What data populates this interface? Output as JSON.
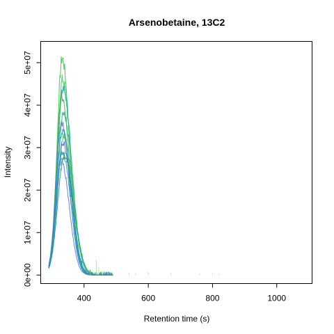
{
  "chart_data": {
    "type": "line",
    "title": "Arsenobetaine, 13C2",
    "xlabel": "Retention time (s)",
    "ylabel": "Intensity",
    "xlim": [
      265,
      1110
    ],
    "ylim": [
      -2000000,
      55000000
    ],
    "x_ticks": [
      {
        "value": 400,
        "label": "400"
      },
      {
        "value": 600,
        "label": "600"
      },
      {
        "value": 800,
        "label": "800"
      },
      {
        "value": 1000,
        "label": "1000"
      }
    ],
    "y_ticks": [
      {
        "value": 0,
        "label": "0e+00"
      },
      {
        "value": 10000000,
        "label": "1e+07"
      },
      {
        "value": 20000000,
        "label": "2e+07"
      },
      {
        "value": 30000000,
        "label": "3e+07"
      },
      {
        "value": 40000000,
        "label": "4e+07"
      },
      {
        "value": 50000000,
        "label": "5e+07"
      }
    ],
    "grid": false,
    "legend": "none",
    "series": [
      {
        "color": "#2ecc40",
        "peak_x": 332,
        "peak_y": 51000000,
        "width": 16
      },
      {
        "color": "#38c868",
        "peak_x": 333,
        "peak_y": 46000000,
        "width": 17
      },
      {
        "color": "#20b0a0",
        "peak_x": 335,
        "peak_y": 44000000,
        "width": 18
      },
      {
        "color": "#4aa848",
        "peak_x": 331,
        "peak_y": 42000000,
        "width": 17
      },
      {
        "color": "#30b878",
        "peak_x": 336,
        "peak_y": 38000000,
        "width": 19
      },
      {
        "color": "#3a7fd8",
        "peak_x": 330,
        "peak_y": 36000000,
        "width": 17
      },
      {
        "color": "#2a8fc8",
        "peak_x": 333,
        "peak_y": 34000000,
        "width": 18
      },
      {
        "color": "#48c060",
        "peak_x": 337,
        "peak_y": 33000000,
        "width": 19
      },
      {
        "color": "#3d6fd0",
        "peak_x": 334,
        "peak_y": 31000000,
        "width": 18
      },
      {
        "color": "#259fb8",
        "peak_x": 332,
        "peak_y": 29000000,
        "width": 18
      },
      {
        "color": "#1fa070",
        "peak_x": 338,
        "peak_y": 28000000,
        "width": 20
      },
      {
        "color": "#4a80e0",
        "peak_x": 329,
        "peak_y": 27000000,
        "width": 17
      }
    ]
  }
}
